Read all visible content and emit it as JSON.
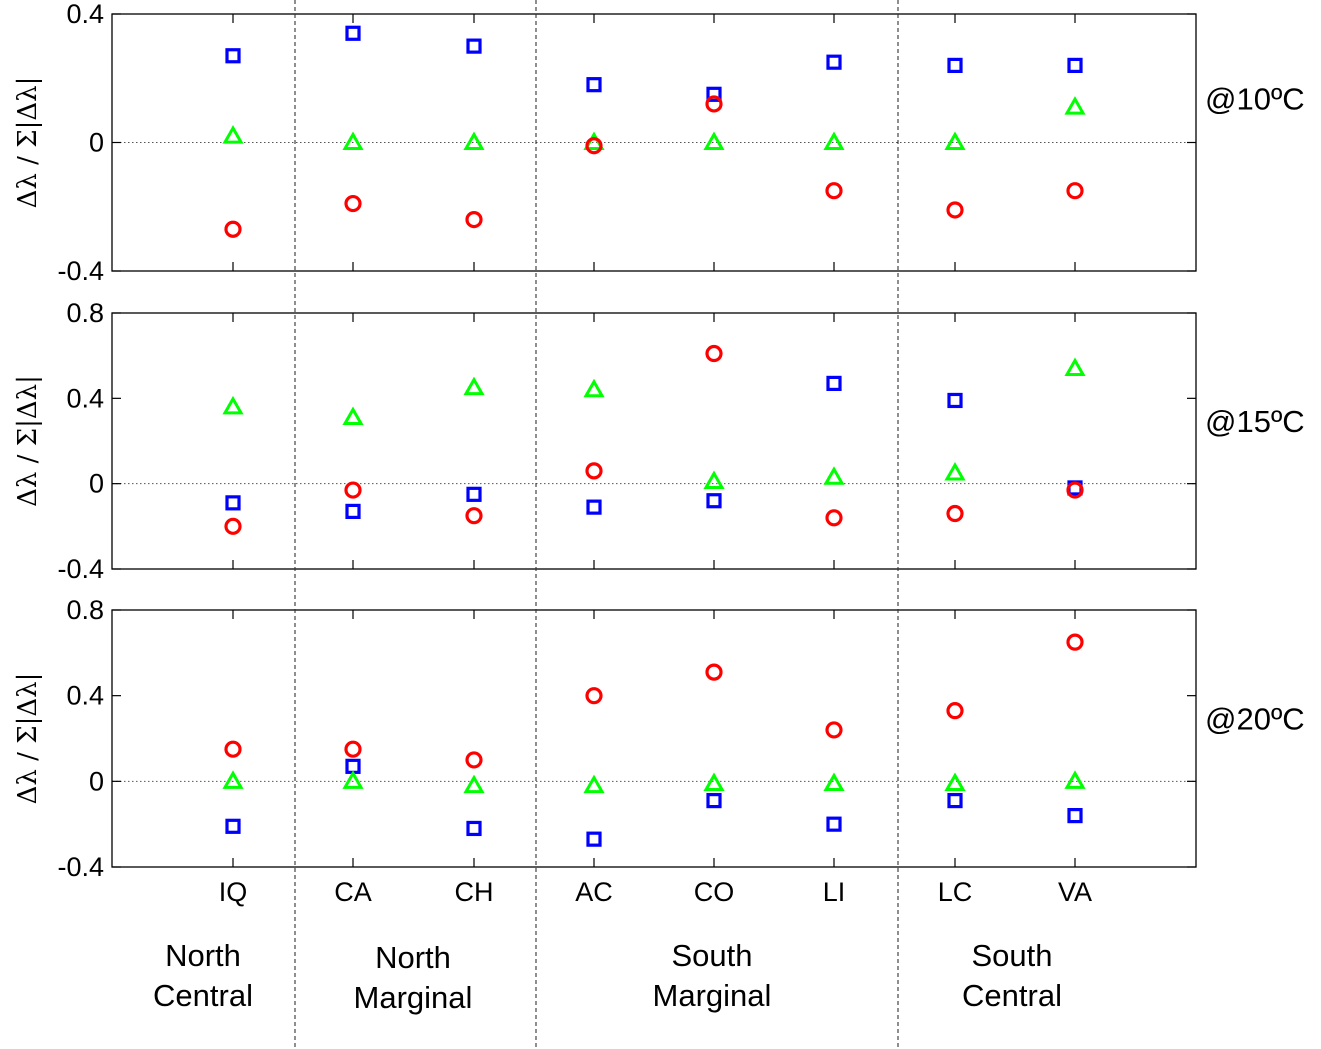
{
  "chart_data": [
    {
      "type": "scatter",
      "temperature_label": "@10ºC",
      "ylabel": "Δλ / Σ|Δλ|",
      "ylim": [
        -0.4,
        0.4
      ],
      "yticks": [
        -0.4,
        0,
        0.4
      ],
      "yticklabels": [
        "-0.4",
        "0",
        "0.4"
      ],
      "categories": [
        "IQ",
        "CA",
        "CH",
        "AC",
        "CO",
        "LI",
        "LC",
        "VA"
      ],
      "series": [
        {
          "marker": "square",
          "color": "#0000ff",
          "values": [
            0.27,
            0.34,
            0.3,
            0.18,
            0.15,
            0.25,
            0.24,
            0.24
          ]
        },
        {
          "marker": "triangle",
          "color": "#00ff00",
          "values": [
            0.02,
            0.0,
            0.0,
            0.0,
            0.0,
            0.0,
            0.0,
            0.11
          ]
        },
        {
          "marker": "circle",
          "color": "#ff0000",
          "values": [
            -0.27,
            -0.19,
            -0.24,
            -0.01,
            0.12,
            -0.15,
            -0.21,
            -0.15
          ]
        }
      ],
      "zero_line": true
    },
    {
      "type": "scatter",
      "temperature_label": "@15ºC",
      "ylabel": "Δλ / Σ|Δλ|",
      "ylim": [
        -0.4,
        0.8
      ],
      "yticks": [
        -0.4,
        0,
        0.4,
        0.8
      ],
      "yticklabels": [
        "-0.4",
        "0",
        "0.4",
        "0.8"
      ],
      "categories": [
        "IQ",
        "CA",
        "CH",
        "AC",
        "CO",
        "LI",
        "LC",
        "VA"
      ],
      "series": [
        {
          "marker": "square",
          "color": "#0000ff",
          "values": [
            -0.09,
            -0.13,
            -0.05,
            -0.11,
            -0.08,
            0.47,
            0.39,
            -0.02
          ]
        },
        {
          "marker": "triangle",
          "color": "#00ff00",
          "values": [
            0.36,
            0.31,
            0.45,
            0.44,
            0.01,
            0.03,
            0.05,
            0.54
          ]
        },
        {
          "marker": "circle",
          "color": "#ff0000",
          "values": [
            -0.2,
            -0.03,
            -0.15,
            0.06,
            0.61,
            -0.16,
            -0.14,
            -0.03
          ]
        }
      ],
      "zero_line": true
    },
    {
      "type": "scatter",
      "temperature_label": "@20ºC",
      "ylabel": "Δλ / Σ|Δλ|",
      "ylim": [
        -0.4,
        0.8
      ],
      "yticks": [
        -0.4,
        0,
        0.4,
        0.8
      ],
      "yticklabels": [
        "-0.4",
        "0",
        "0.4",
        "0.8"
      ],
      "categories": [
        "IQ",
        "CA",
        "CH",
        "AC",
        "CO",
        "LI",
        "LC",
        "VA"
      ],
      "series": [
        {
          "marker": "square",
          "color": "#0000ff",
          "values": [
            -0.21,
            0.07,
            -0.22,
            -0.27,
            -0.09,
            -0.2,
            -0.09,
            -0.16
          ]
        },
        {
          "marker": "triangle",
          "color": "#00ff00",
          "values": [
            0.0,
            0.0,
            -0.02,
            -0.02,
            -0.01,
            -0.01,
            -0.01,
            0.0
          ]
        },
        {
          "marker": "circle",
          "color": "#ff0000",
          "values": [
            0.15,
            0.15,
            0.1,
            0.4,
            0.51,
            0.24,
            0.33,
            0.65
          ]
        }
      ],
      "zero_line": true
    }
  ],
  "groups": [
    {
      "line1": "North",
      "line2": "Central"
    },
    {
      "line1": "North",
      "line2": "Marginal"
    },
    {
      "line1": "South",
      "line2": "Marginal"
    },
    {
      "line1": "South",
      "line2": "Central"
    }
  ]
}
